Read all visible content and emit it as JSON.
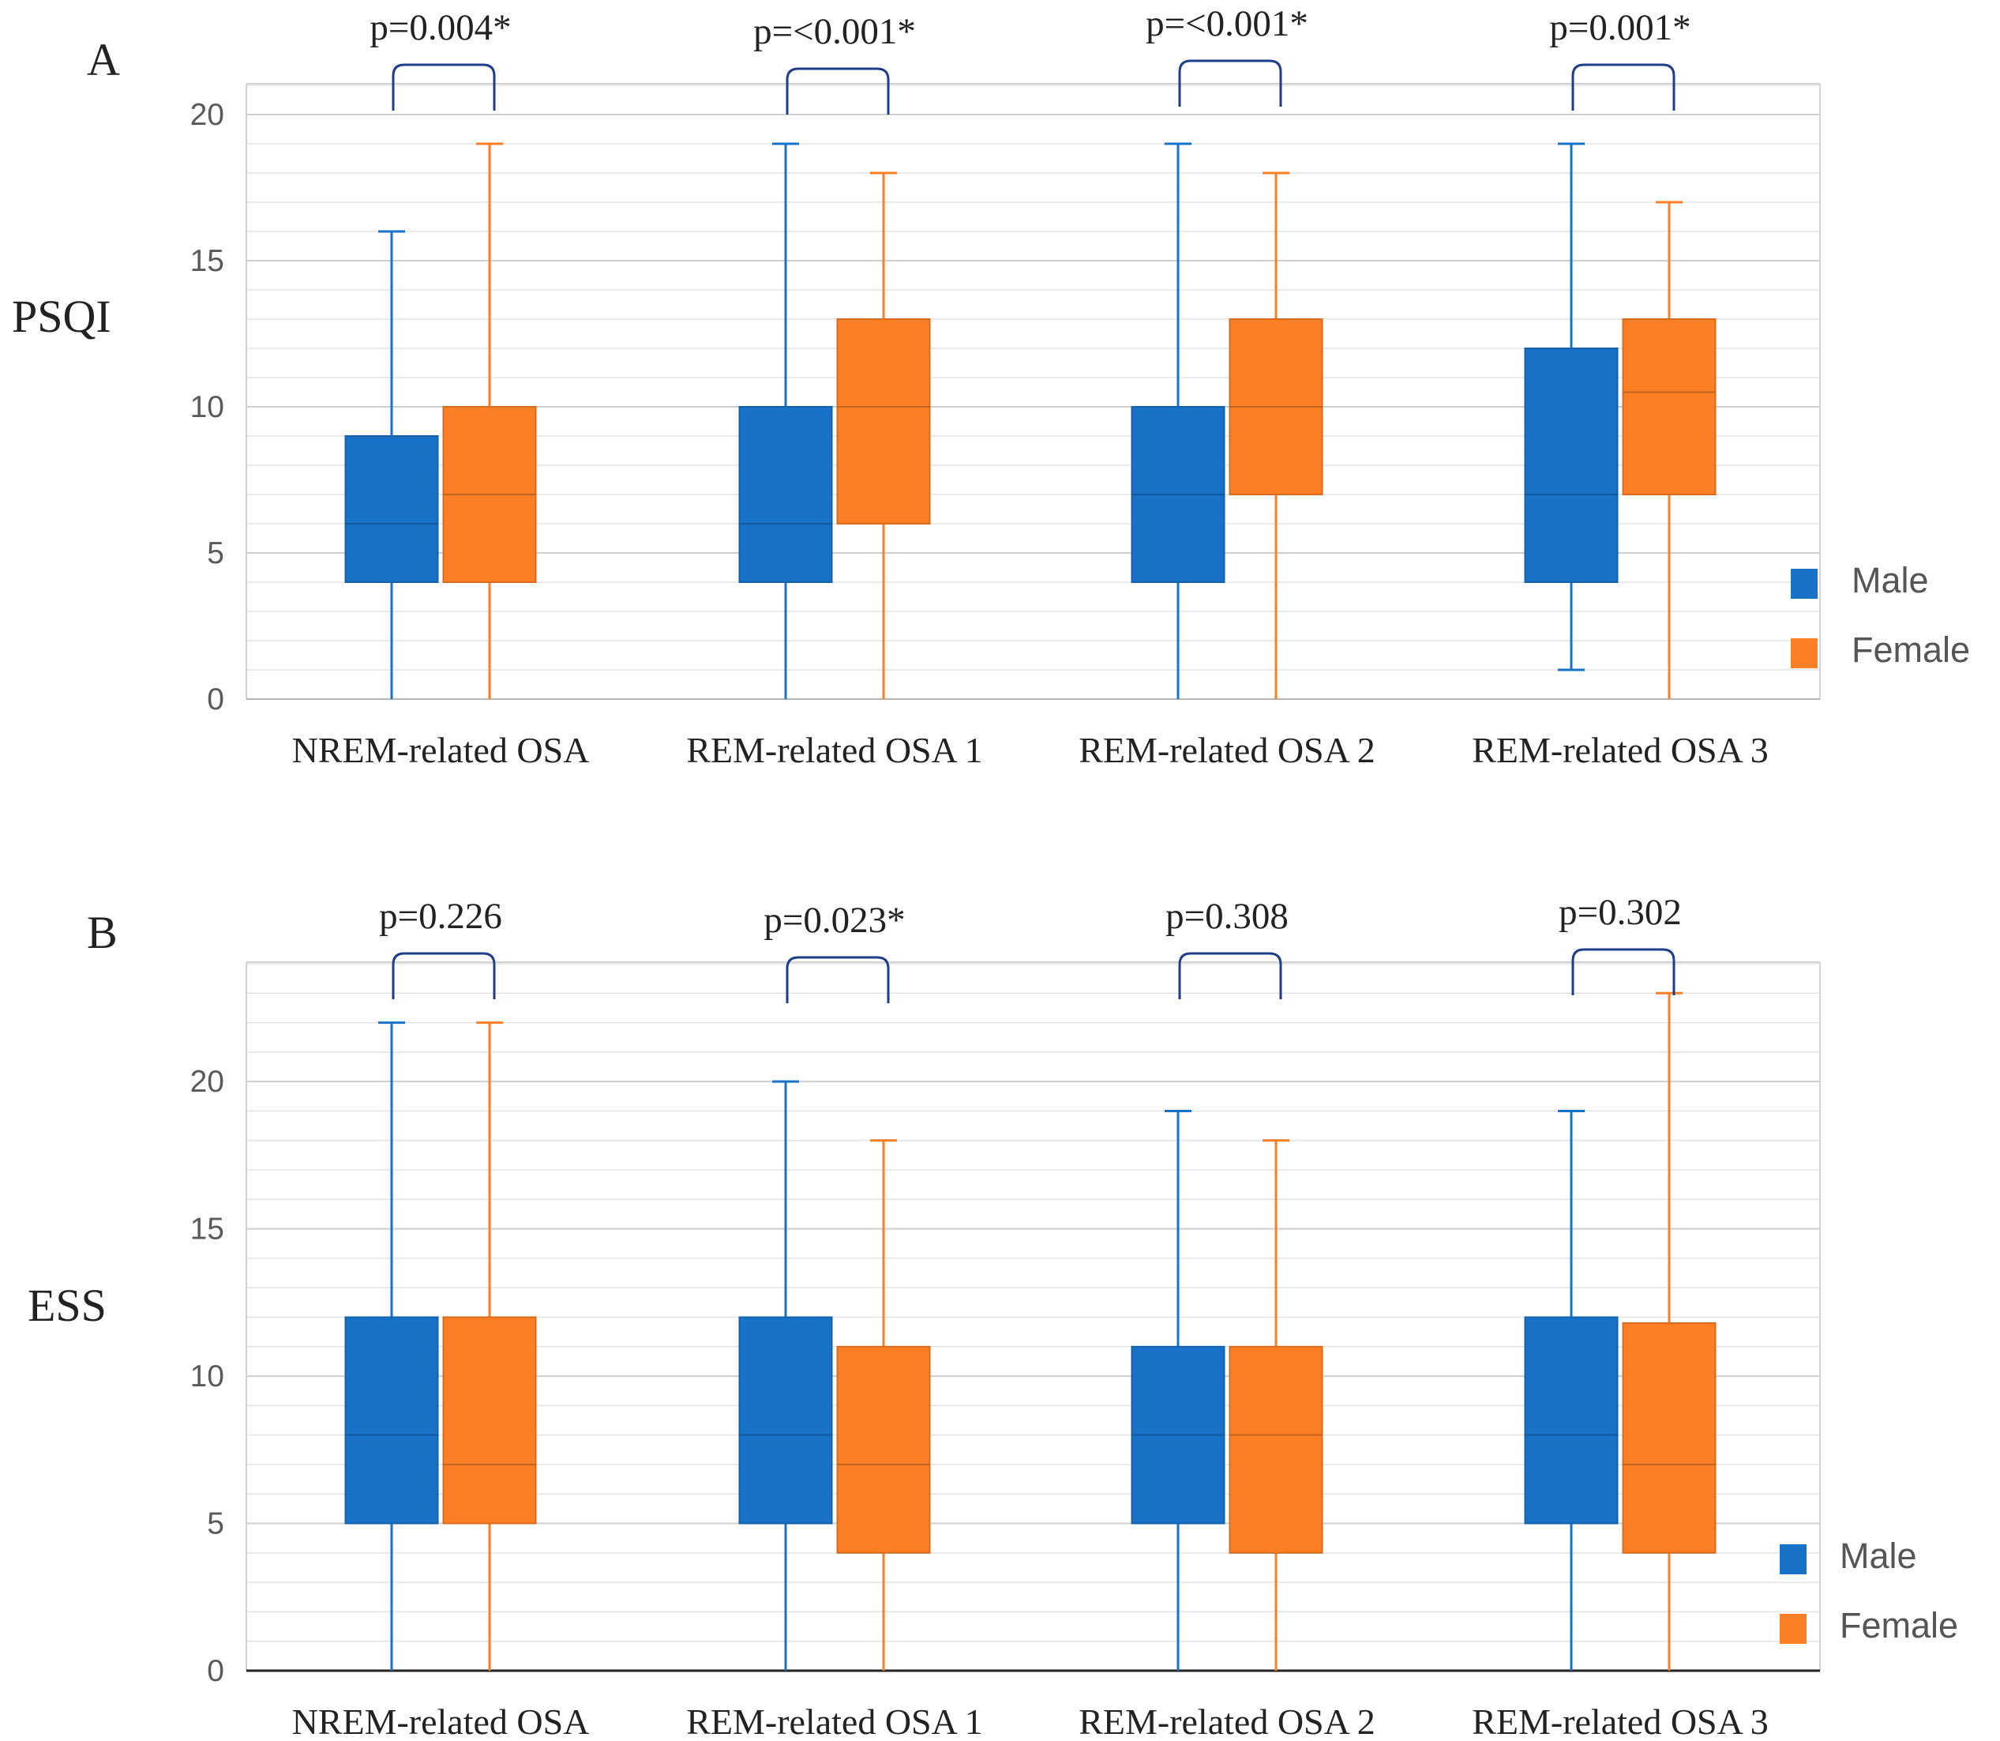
{
  "legend": {
    "male_label": "Male",
    "female_label": "Female",
    "male_color": "#1872c8",
    "female_color": "#fd7f25",
    "bracket_color": "#1f3d8a"
  },
  "chart_data": [
    {
      "type": "box",
      "panel": "A",
      "ylabel": "PSQI",
      "xlabel": "",
      "ylim": [
        0,
        21
      ],
      "yticks": [
        0,
        5,
        10,
        15,
        20
      ],
      "grid": true,
      "legend_position": "right",
      "categories": [
        "NREM-related OSA",
        "REM-related OSA 1",
        "REM-related OSA 2",
        "REM-related OSA 3"
      ],
      "p_values": [
        "p=0.004*",
        "p=<0.001*",
        "p=<0.001*",
        "p=0.001*"
      ],
      "series": [
        {
          "name": "Male",
          "boxes": [
            {
              "min": 0,
              "q1": 4,
              "median": 6,
              "q3": 9,
              "max": 16
            },
            {
              "min": 0,
              "q1": 4,
              "median": 6,
              "q3": 10,
              "max": 19
            },
            {
              "min": 0,
              "q1": 4,
              "median": 7,
              "q3": 10,
              "max": 19
            },
            {
              "min": 1,
              "q1": 4,
              "median": 7,
              "q3": 12,
              "max": 19
            }
          ]
        },
        {
          "name": "Female",
          "boxes": [
            {
              "min": 0,
              "q1": 4,
              "median": 7,
              "q3": 10,
              "max": 19
            },
            {
              "min": 0,
              "q1": 6,
              "median": 10,
              "q3": 13,
              "max": 18
            },
            {
              "min": 0,
              "q1": 7,
              "median": 10,
              "q3": 13,
              "max": 18
            },
            {
              "min": 0,
              "q1": 7,
              "median": 10.5,
              "q3": 13,
              "max": 17
            }
          ]
        }
      ]
    },
    {
      "type": "box",
      "panel": "B",
      "ylabel": "ESS",
      "xlabel": "",
      "ylim": [
        0,
        24
      ],
      "yticks": [
        0,
        5,
        10,
        15,
        20
      ],
      "grid": true,
      "legend_position": "right",
      "categories": [
        "NREM-related OSA",
        "REM-related OSA 1",
        "REM-related OSA 2",
        "REM-related OSA 3"
      ],
      "p_values": [
        "p=0.226",
        "p=0.023*",
        "p=0.308",
        "p=0.302"
      ],
      "series": [
        {
          "name": "Male",
          "boxes": [
            {
              "min": 0,
              "q1": 5,
              "median": 8,
              "q3": 12,
              "max": 22
            },
            {
              "min": 0,
              "q1": 5,
              "median": 8,
              "q3": 12,
              "max": 20
            },
            {
              "min": 0,
              "q1": 5,
              "median": 8,
              "q3": 11,
              "max": 19
            },
            {
              "min": 0,
              "q1": 5,
              "median": 8,
              "q3": 12,
              "max": 19
            }
          ]
        },
        {
          "name": "Female",
          "boxes": [
            {
              "min": 0,
              "q1": 5,
              "median": 7,
              "q3": 12,
              "max": 22
            },
            {
              "min": 0,
              "q1": 4,
              "median": 7,
              "q3": 11,
              "max": 18
            },
            {
              "min": 0,
              "q1": 4,
              "median": 8,
              "q3": 11,
              "max": 18
            },
            {
              "min": 0,
              "q1": 4,
              "median": 7,
              "q3": 11.8,
              "max": 23
            }
          ]
        }
      ]
    }
  ]
}
